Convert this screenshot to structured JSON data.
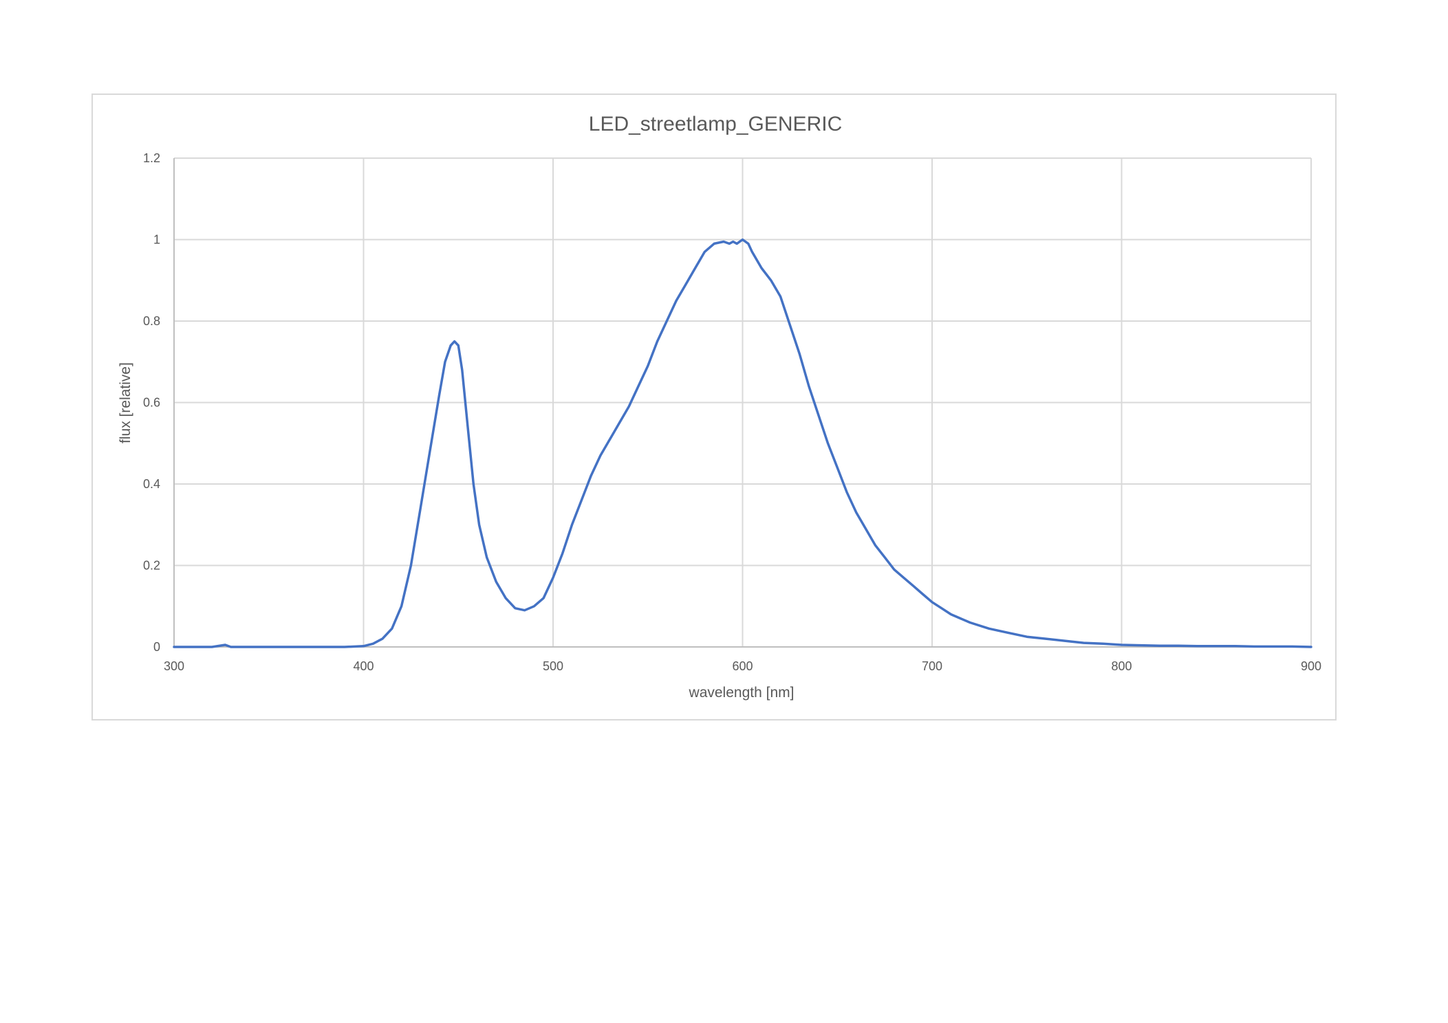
{
  "chart_data": {
    "type": "line",
    "title": "LED_streetlamp_GENERIC",
    "xlabel": "wavelength [nm]",
    "ylabel": "flux [relative]",
    "xlim": [
      300,
      900
    ],
    "ylim": [
      0,
      1.2
    ],
    "x_ticks": [
      "300",
      "400",
      "500",
      "600",
      "700",
      "800",
      "900"
    ],
    "y_ticks": [
      "0",
      "0.2",
      "0.4",
      "0.6",
      "0.8",
      "1",
      "1.2"
    ],
    "grid": true,
    "legend": "none",
    "line_color": "#4472c4",
    "series": [
      {
        "x": [
          300,
          310,
          320,
          327,
          330,
          340,
          350,
          360,
          370,
          380,
          390,
          400,
          405,
          410,
          415,
          420,
          425,
          430,
          435,
          440,
          443,
          446,
          448,
          450,
          452,
          455,
          458,
          461,
          465,
          470,
          475,
          480,
          485,
          490,
          495,
          500,
          505,
          510,
          515,
          520,
          525,
          530,
          535,
          540,
          545,
          550,
          555,
          560,
          565,
          570,
          575,
          580,
          585,
          590,
          593,
          595,
          597,
          600,
          603,
          605,
          610,
          615,
          620,
          625,
          630,
          635,
          640,
          645,
          650,
          655,
          660,
          665,
          670,
          675,
          680,
          685,
          690,
          695,
          700,
          705,
          710,
          720,
          730,
          740,
          750,
          760,
          770,
          780,
          790,
          800,
          810,
          820,
          830,
          840,
          850,
          860,
          870,
          880,
          890,
          900
        ],
        "y": [
          0.0,
          0.0,
          0.0,
          0.005,
          0.0,
          0.0,
          0.0,
          0.0,
          0.0,
          0.0,
          0.0,
          0.002,
          0.008,
          0.02,
          0.045,
          0.1,
          0.2,
          0.34,
          0.48,
          0.62,
          0.7,
          0.74,
          0.75,
          0.74,
          0.68,
          0.54,
          0.4,
          0.3,
          0.22,
          0.16,
          0.12,
          0.095,
          0.09,
          0.1,
          0.12,
          0.17,
          0.23,
          0.3,
          0.36,
          0.42,
          0.47,
          0.51,
          0.55,
          0.59,
          0.64,
          0.69,
          0.75,
          0.8,
          0.85,
          0.89,
          0.93,
          0.97,
          0.99,
          0.995,
          0.99,
          0.995,
          0.99,
          1.0,
          0.99,
          0.97,
          0.93,
          0.9,
          0.86,
          0.79,
          0.72,
          0.64,
          0.57,
          0.5,
          0.44,
          0.38,
          0.33,
          0.29,
          0.25,
          0.22,
          0.19,
          0.17,
          0.15,
          0.13,
          0.11,
          0.095,
          0.08,
          0.06,
          0.045,
          0.035,
          0.025,
          0.02,
          0.015,
          0.01,
          0.008,
          0.005,
          0.004,
          0.003,
          0.003,
          0.002,
          0.002,
          0.002,
          0.001,
          0.001,
          0.001,
          0.0
        ]
      }
    ]
  }
}
